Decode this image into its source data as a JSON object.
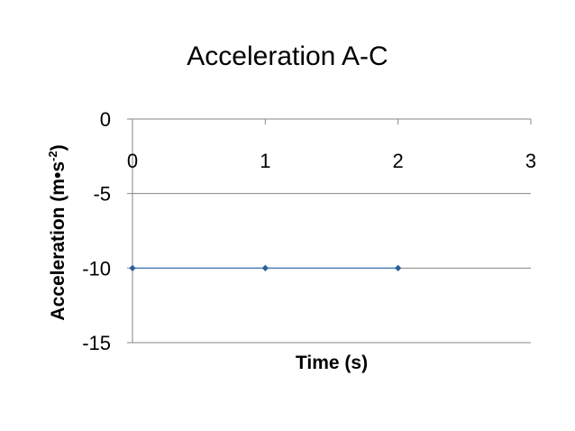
{
  "chart_data": {
    "type": "scatter",
    "title": "Acceleration A-C",
    "xlabel": "Time (s)",
    "ylabel": {
      "base": "Acceleration (m•s",
      "superscript": "-2",
      "close": ")"
    },
    "x_ticks": [
      "0",
      "1",
      "2",
      "3"
    ],
    "y_ticks": [
      "0",
      "-5",
      "-10",
      "-15"
    ],
    "xlim": [
      0,
      3
    ],
    "ylim": [
      -15,
      0
    ],
    "grid": "horizontal",
    "legend": "none",
    "series": [
      {
        "x": [
          0,
          1,
          2
        ],
        "y": [
          -10,
          -10,
          -10
        ],
        "marker": "diamond",
        "line": true
      }
    ],
    "colors": {
      "series": "#4f81bd",
      "marker": "#2e5f94",
      "gridline": "#868686",
      "axis": "#868686"
    }
  }
}
